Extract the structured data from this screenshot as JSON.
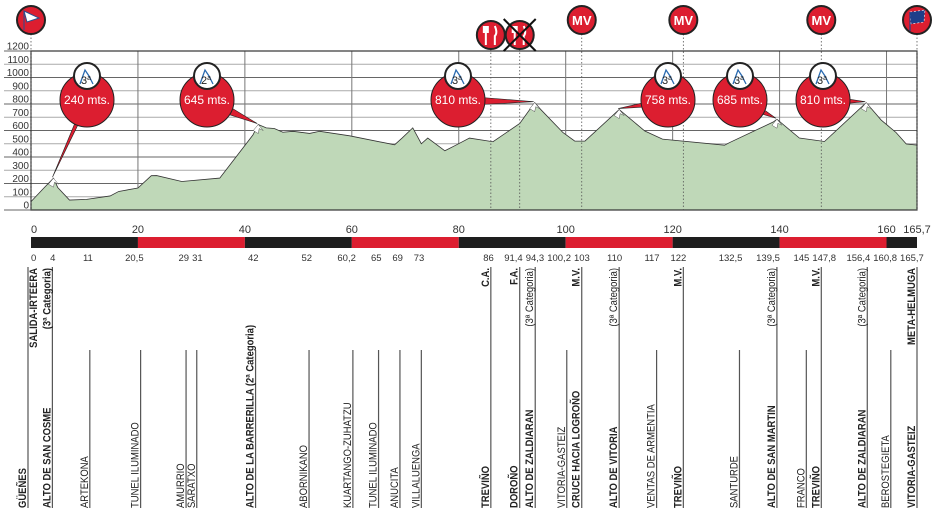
{
  "chart_data": {
    "type": "area",
    "title": "",
    "xlabel": "",
    "ylabel": "",
    "xlim": [
      0,
      165.7
    ],
    "ylim": [
      0,
      1200
    ],
    "grid": true,
    "y_ticks": [
      "0",
      "100",
      "200",
      "300",
      "400",
      "500",
      "600",
      "700",
      "800",
      "900",
      "1000",
      "1100",
      "1200"
    ],
    "x_ticks": [
      "0",
      "20",
      "40",
      "60",
      "80",
      "100",
      "120",
      "140",
      "160",
      "165,7"
    ],
    "x_tick_values": [
      0,
      20,
      40,
      60,
      80,
      100,
      120,
      140,
      160,
      165.7
    ],
    "colors": {
      "fill": "#bfd8b8",
      "accent": "#dc1e30",
      "bar_dark": "#1e1e1e",
      "grid": "#888888"
    },
    "profile": [
      [
        0,
        63
      ],
      [
        2.5,
        170
      ],
      [
        4.2,
        240
      ],
      [
        5,
        170
      ],
      [
        7.2,
        75
      ],
      [
        10.4,
        80
      ],
      [
        14.8,
        106
      ],
      [
        16.4,
        140
      ],
      [
        20,
        166
      ],
      [
        22.5,
        259
      ],
      [
        23.5,
        260
      ],
      [
        28.2,
        215
      ],
      [
        35.3,
        241
      ],
      [
        41.5,
        566
      ],
      [
        42.5,
        645
      ],
      [
        44,
        620
      ],
      [
        45.5,
        615
      ],
      [
        47.1,
        587
      ],
      [
        49,
        594
      ],
      [
        52.1,
        578
      ],
      [
        54,
        594
      ],
      [
        59.6,
        560
      ],
      [
        68,
        492
      ],
      [
        69.4,
        543
      ],
      [
        71.4,
        620
      ],
      [
        73,
        500
      ],
      [
        74.2,
        543
      ],
      [
        77.4,
        447
      ],
      [
        79.5,
        490
      ],
      [
        82,
        543
      ],
      [
        86.4,
        515
      ],
      [
        91.4,
        653
      ],
      [
        94.2,
        810
      ],
      [
        95.3,
        760
      ],
      [
        99.5,
        584
      ],
      [
        101.7,
        520
      ],
      [
        103.6,
        520
      ],
      [
        110,
        758
      ],
      [
        114.8,
        596
      ],
      [
        118.1,
        535
      ],
      [
        129.7,
        489
      ],
      [
        130.7,
        510
      ],
      [
        138.8,
        664
      ],
      [
        139.5,
        685
      ],
      [
        143.7,
        543
      ],
      [
        148.4,
        517
      ],
      [
        156.2,
        810
      ],
      [
        159,
        679
      ],
      [
        161.8,
        584
      ],
      [
        163.7,
        498
      ],
      [
        165.7,
        490
      ]
    ],
    "climbs": [
      {
        "km": 4.2,
        "category": "3",
        "elevation_label": "240 mts."
      },
      {
        "km": 42.5,
        "category": "2",
        "elevation_label": "645 mts."
      },
      {
        "km": 94.2,
        "category": "3",
        "elevation_label": "810 mts."
      },
      {
        "km": 110,
        "category": "3",
        "elevation_label": "758 mts."
      },
      {
        "km": 139.5,
        "category": "3",
        "elevation_label": "685 mts."
      },
      {
        "km": 156.2,
        "category": "3",
        "elevation_label": "810 mts."
      }
    ],
    "category_suffix": "a",
    "icons": [
      {
        "km": 0,
        "icon": "start-flag-icon"
      },
      {
        "km": 86,
        "icon": "feed-zone-icon"
      },
      {
        "km": 91.4,
        "icon": "end-feed-zone-icon"
      },
      {
        "km": 103,
        "icon": "mv-sprint-icon",
        "label": "MV"
      },
      {
        "km": 122,
        "icon": "mv-sprint-icon",
        "label": "MV"
      },
      {
        "km": 147.8,
        "icon": "mv-sprint-icon",
        "label": "MV"
      },
      {
        "km": 165.7,
        "icon": "finish-flag-icon"
      }
    ],
    "stations": [
      {
        "km": 0,
        "km_label": "0",
        "name": "GÜEÑES",
        "bold": true,
        "top": "SALIDA-IRTEERA",
        "top_bold": true
      },
      {
        "km": 4,
        "km_label": "4",
        "name": "ALTO DE SAN COSME",
        "bold": true,
        "top": "(3ª Categoria)",
        "top_bold": true
      },
      {
        "km": 11,
        "km_label": "11",
        "name": "ARTEKONA",
        "bold": false
      },
      {
        "km": 20.5,
        "km_label": "20,5",
        "name": "TUNEL ILUMINADO",
        "bold": false
      },
      {
        "km": 29,
        "km_label": "29",
        "name": "AMURRIO",
        "bold": false
      },
      {
        "km": 31,
        "km_label": "31",
        "name": "SARATXO",
        "bold": false
      },
      {
        "km": 42,
        "km_label": "42",
        "name": "ALTO DE LA BARRERILLA (2ª Categoria)",
        "bold": true
      },
      {
        "km": 52,
        "km_label": "52",
        "name": "ABORNIKANO",
        "bold": false
      },
      {
        "km": 60.2,
        "km_label": "60,2",
        "name": "KUARTANGO-ZUHATZU",
        "bold": false
      },
      {
        "km": 65,
        "km_label": "65",
        "name": "TUNEL ILUMINADO",
        "bold": false
      },
      {
        "km": 69,
        "km_label": "69",
        "name": "ANUCITA",
        "bold": false
      },
      {
        "km": 73,
        "km_label": "73",
        "name": "VILLALUENGA",
        "bold": false
      },
      {
        "km": 86,
        "km_label": "86",
        "name": "TREVIÑO",
        "bold": true,
        "top": "C.A.",
        "top_bold": true
      },
      {
        "km": 91.4,
        "km_label": "91,4",
        "name": "DOROÑO",
        "bold": true,
        "top": "F.A.",
        "top_bold": true
      },
      {
        "km": 94.3,
        "km_label": "94,3",
        "name": "ALTO DE ZALDIARAN",
        "bold": true,
        "top": "(3ª Categoria)",
        "top_bold": false
      },
      {
        "km": 100.2,
        "km_label": "100,2",
        "name": "VITORIA-GASTEIZ",
        "bold": false
      },
      {
        "km": 103,
        "km_label": "103",
        "name": "CRUCE HACIA LOGROÑO",
        "bold": true,
        "top": "M.V.",
        "top_bold": true
      },
      {
        "km": 110,
        "km_label": "110",
        "name": "ALTO DE VITORIA",
        "bold": true,
        "top": "(3ª Categoria)",
        "top_bold": false
      },
      {
        "km": 117,
        "km_label": "117",
        "name": "VENTAS DE ARMENTIA",
        "bold": false
      },
      {
        "km": 122,
        "km_label": "122",
        "name": "TREVIÑO",
        "bold": true,
        "top": "M.V.",
        "top_bold": true
      },
      {
        "km": 132.5,
        "km_label": "132,5",
        "name": "SANTURDE",
        "bold": false
      },
      {
        "km": 139.5,
        "km_label": "139,5",
        "name": "ALTO DE SAN MARTIN",
        "bold": true,
        "top": "(3ª Categoria)",
        "top_bold": false
      },
      {
        "km": 145,
        "km_label": "145",
        "name": "FRANCO",
        "bold": false
      },
      {
        "km": 147.8,
        "km_label": "147,8",
        "name": "TREVIÑO",
        "bold": true,
        "top": "M.V.",
        "top_bold": true
      },
      {
        "km": 156.4,
        "km_label": "156,4",
        "name": "ALTO DE ZALDIARAN",
        "bold": true,
        "top": "(3ª Categoria)",
        "top_bold": false
      },
      {
        "km": 160.8,
        "km_label": "160,8",
        "name": "BEROSTEGIETA",
        "bold": false
      },
      {
        "km": 165.7,
        "km_label": "165,7",
        "name": "VITORIA-GASTEIZ",
        "bold": true,
        "big": true,
        "top": "META-HELMUGA",
        "top_bold": true
      }
    ]
  }
}
